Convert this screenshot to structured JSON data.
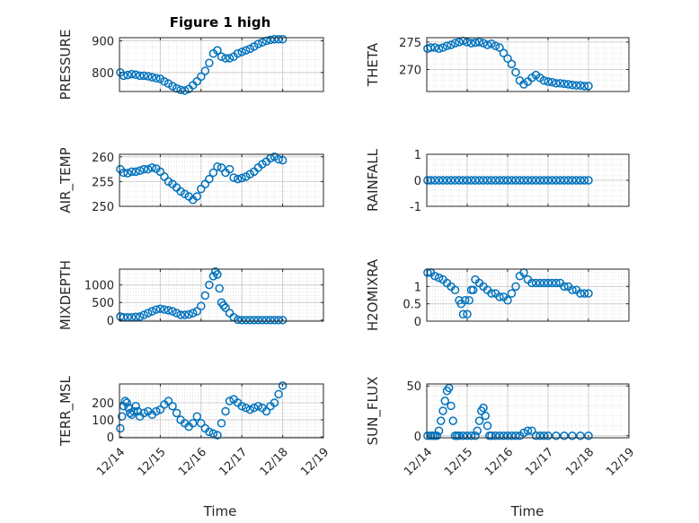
{
  "figure": {
    "title": "Figure 1 high",
    "marker_color": "#0072BD",
    "axes_color": "#262626",
    "grid_color": "#dcdcdc"
  },
  "chart_data": [
    {
      "type": "scatter",
      "ylabel": "PRESSURE",
      "xlim": [
        0,
        5
      ],
      "ylim": [
        740,
        910
      ],
      "yticks": [
        800,
        900
      ],
      "x": [
        0.02,
        0.1,
        0.2,
        0.3,
        0.4,
        0.5,
        0.6,
        0.7,
        0.8,
        0.9,
        1.0,
        1.1,
        1.2,
        1.3,
        1.4,
        1.5,
        1.6,
        1.7,
        1.8,
        1.9,
        2.0,
        2.1,
        2.2,
        2.3,
        2.4,
        2.5,
        2.6,
        2.7,
        2.8,
        2.9,
        3.0,
        3.1,
        3.2,
        3.3,
        3.4,
        3.5,
        3.6,
        3.7,
        3.8,
        3.9,
        4.0
      ],
      "y": [
        800,
        790,
        792,
        795,
        793,
        790,
        790,
        788,
        785,
        782,
        780,
        772,
        765,
        757,
        750,
        745,
        743,
        748,
        760,
        772,
        787,
        805,
        830,
        860,
        870,
        850,
        845,
        845,
        850,
        860,
        865,
        870,
        875,
        882,
        890,
        895,
        900,
        903,
        905,
        905,
        905
      ]
    },
    {
      "type": "scatter",
      "ylabel": "THETA",
      "xlim": [
        0,
        5
      ],
      "ylim": [
        266,
        275.8
      ],
      "yticks": [
        270,
        275
      ],
      "x": [
        0.02,
        0.1,
        0.2,
        0.3,
        0.4,
        0.5,
        0.6,
        0.7,
        0.8,
        0.9,
        1.0,
        1.1,
        1.2,
        1.3,
        1.4,
        1.5,
        1.6,
        1.7,
        1.8,
        1.9,
        2.0,
        2.1,
        2.2,
        2.3,
        2.4,
        2.5,
        2.6,
        2.7,
        2.8,
        2.9,
        3.0,
        3.1,
        3.2,
        3.3,
        3.4,
        3.5,
        3.6,
        3.7,
        3.8,
        3.9,
        4.0
      ],
      "y": [
        273.8,
        274,
        274,
        273.8,
        274,
        274.3,
        274.5,
        274.8,
        275,
        275.2,
        275,
        274.8,
        274.9,
        275,
        274.8,
        274.5,
        274.7,
        274.3,
        274,
        273,
        272,
        271,
        269.5,
        268,
        267.3,
        267.8,
        268.5,
        269,
        268.5,
        268,
        267.8,
        267.7,
        267.5,
        267.5,
        267.4,
        267.3,
        267.2,
        267.1,
        267.1,
        267,
        267
      ]
    },
    {
      "type": "scatter",
      "ylabel": "AIR_TEMP",
      "xlim": [
        0,
        5
      ],
      "ylim": [
        250,
        260.5
      ],
      "yticks": [
        250,
        255,
        260
      ],
      "x": [
        0.02,
        0.1,
        0.2,
        0.3,
        0.4,
        0.5,
        0.6,
        0.7,
        0.8,
        0.9,
        1.0,
        1.1,
        1.2,
        1.3,
        1.4,
        1.5,
        1.6,
        1.7,
        1.8,
        1.9,
        2.0,
        2.1,
        2.2,
        2.3,
        2.4,
        2.5,
        2.6,
        2.7,
        2.8,
        2.9,
        3.0,
        3.1,
        3.2,
        3.3,
        3.4,
        3.5,
        3.6,
        3.7,
        3.8,
        3.9,
        4.0
      ],
      "y": [
        257.5,
        256.8,
        256.7,
        257,
        257,
        257.2,
        257.5,
        257.5,
        257.8,
        257.6,
        257,
        256,
        255,
        254.5,
        253.8,
        253,
        252.5,
        252,
        251.3,
        252,
        253.5,
        254.5,
        255.5,
        256.8,
        258,
        257.8,
        256.8,
        257.5,
        255.8,
        255.5,
        255.7,
        256,
        256.5,
        257,
        257.8,
        258.5,
        259,
        259.7,
        260,
        259.5,
        259.3
      ]
    },
    {
      "type": "scatter",
      "ylabel": "RAINFALL",
      "xlim": [
        0,
        5
      ],
      "ylim": [
        -1,
        1
      ],
      "yticks": [
        -1,
        0,
        1
      ],
      "x": [
        0.02,
        0.1,
        0.2,
        0.3,
        0.4,
        0.5,
        0.6,
        0.7,
        0.8,
        0.9,
        1.0,
        1.1,
        1.2,
        1.3,
        1.4,
        1.5,
        1.6,
        1.7,
        1.8,
        1.9,
        2.0,
        2.1,
        2.2,
        2.3,
        2.4,
        2.5,
        2.6,
        2.7,
        2.8,
        2.9,
        3.0,
        3.1,
        3.2,
        3.3,
        3.4,
        3.5,
        3.6,
        3.7,
        3.8,
        3.9,
        4.0
      ],
      "y": [
        0,
        0,
        0,
        0,
        0,
        0,
        0,
        0,
        0,
        0,
        0,
        0,
        0,
        0,
        0,
        0,
        0,
        0,
        0,
        0,
        0,
        0,
        0,
        0,
        0,
        0,
        0,
        0,
        0,
        0,
        0,
        0,
        0,
        0,
        0,
        0,
        0,
        0,
        0,
        0,
        0
      ]
    },
    {
      "type": "scatter",
      "ylabel": "MIXDEPTH",
      "xlim": [
        0,
        5
      ],
      "ylim": [
        -30,
        1450
      ],
      "yticks": [
        0,
        500,
        1000
      ],
      "x": [
        0.02,
        0.1,
        0.2,
        0.3,
        0.4,
        0.5,
        0.6,
        0.7,
        0.8,
        0.9,
        1.0,
        1.1,
        1.2,
        1.3,
        1.4,
        1.5,
        1.6,
        1.7,
        1.8,
        1.9,
        2.0,
        2.1,
        2.2,
        2.3,
        2.35,
        2.4,
        2.45,
        2.5,
        2.55,
        2.6,
        2.7,
        2.8,
        2.9,
        3.0,
        3.1,
        3.2,
        3.3,
        3.4,
        3.5,
        3.6,
        3.7,
        3.8,
        3.9,
        4.0
      ],
      "y": [
        100,
        80,
        80,
        80,
        90,
        100,
        150,
        200,
        250,
        300,
        320,
        300,
        280,
        250,
        200,
        150,
        150,
        160,
        200,
        250,
        400,
        700,
        1000,
        1250,
        1380,
        1300,
        900,
        500,
        420,
        350,
        200,
        80,
        10,
        0,
        0,
        0,
        0,
        0,
        0,
        0,
        0,
        0,
        0,
        0
      ]
    },
    {
      "type": "scatter",
      "ylabel": "H2OMIXRA",
      "xlim": [
        0,
        5
      ],
      "ylim": [
        0,
        1.5
      ],
      "yticks": [
        0,
        0.5,
        1
      ],
      "x": [
        0.02,
        0.1,
        0.2,
        0.3,
        0.4,
        0.5,
        0.6,
        0.7,
        0.8,
        0.85,
        0.9,
        0.95,
        1.0,
        1.05,
        1.1,
        1.15,
        1.2,
        1.3,
        1.4,
        1.5,
        1.6,
        1.7,
        1.8,
        1.9,
        2.0,
        2.1,
        2.2,
        2.3,
        2.4,
        2.5,
        2.6,
        2.7,
        2.8,
        2.9,
        3.0,
        3.1,
        3.2,
        3.3,
        3.4,
        3.5,
        3.6,
        3.7,
        3.8,
        3.9,
        4.0
      ],
      "y": [
        1.4,
        1.4,
        1.3,
        1.25,
        1.2,
        1.1,
        1.0,
        0.9,
        0.6,
        0.5,
        0.2,
        0.6,
        0.2,
        0.6,
        0.9,
        0.9,
        1.2,
        1.1,
        1.0,
        0.9,
        0.8,
        0.8,
        0.7,
        0.7,
        0.6,
        0.8,
        1.0,
        1.3,
        1.4,
        1.2,
        1.1,
        1.1,
        1.1,
        1.1,
        1.1,
        1.1,
        1.1,
        1.1,
        1.0,
        1.0,
        0.9,
        0.9,
        0.8,
        0.8,
        0.8
      ]
    },
    {
      "type": "scatter",
      "ylabel": "TERR_MSL",
      "xlim": [
        0,
        5
      ],
      "ylim": [
        -5,
        310
      ],
      "yticks": [
        0,
        100,
        200
      ],
      "x": [
        0.02,
        0.06,
        0.1,
        0.14,
        0.18,
        0.22,
        0.26,
        0.3,
        0.35,
        0.4,
        0.45,
        0.5,
        0.6,
        0.7,
        0.8,
        0.9,
        1.0,
        1.1,
        1.2,
        1.3,
        1.4,
        1.5,
        1.6,
        1.7,
        1.8,
        1.9,
        2.0,
        2.1,
        2.2,
        2.3,
        2.4,
        2.5,
        2.6,
        2.7,
        2.8,
        2.9,
        3.0,
        3.1,
        3.2,
        3.3,
        3.4,
        3.5,
        3.6,
        3.7,
        3.8,
        3.9,
        4.0
      ],
      "y": [
        50,
        120,
        180,
        210,
        200,
        170,
        140,
        130,
        150,
        180,
        150,
        120,
        140,
        150,
        130,
        150,
        160,
        190,
        210,
        180,
        140,
        100,
        80,
        60,
        80,
        120,
        80,
        50,
        30,
        20,
        10,
        80,
        150,
        210,
        220,
        200,
        180,
        170,
        160,
        170,
        180,
        170,
        150,
        180,
        200,
        250,
        300
      ]
    },
    {
      "type": "scatter",
      "ylabel": "SUN_FLUX",
      "xlim": [
        0,
        5
      ],
      "ylim": [
        -2,
        52
      ],
      "yticks": [
        0,
        50
      ],
      "x": [
        0.02,
        0.1,
        0.15,
        0.2,
        0.25,
        0.3,
        0.35,
        0.4,
        0.45,
        0.5,
        0.55,
        0.6,
        0.65,
        0.7,
        0.75,
        0.8,
        0.9,
        1.0,
        1.1,
        1.2,
        1.25,
        1.3,
        1.35,
        1.4,
        1.45,
        1.5,
        1.55,
        1.6,
        1.7,
        1.8,
        1.9,
        2.0,
        2.1,
        2.2,
        2.3,
        2.4,
        2.5,
        2.6,
        2.7,
        2.8,
        2.9,
        3.0,
        3.2,
        3.4,
        3.6,
        3.8,
        4.0
      ],
      "y": [
        0,
        0,
        0,
        0,
        0,
        5,
        15,
        25,
        35,
        45,
        48,
        30,
        15,
        0,
        0,
        0,
        0,
        0,
        0,
        0,
        5,
        15,
        25,
        28,
        20,
        10,
        0,
        0,
        0,
        0,
        0,
        0,
        0,
        0,
        0,
        3,
        5,
        5,
        0,
        0,
        0,
        0,
        0,
        0,
        0,
        0,
        0
      ]
    }
  ],
  "xaxis": {
    "ticks": [
      0,
      1,
      2,
      3,
      4,
      5
    ],
    "tick_labels": [
      "12/14",
      "12/15",
      "12/16",
      "12/17",
      "12/18",
      "12/19"
    ],
    "label": "Time"
  }
}
